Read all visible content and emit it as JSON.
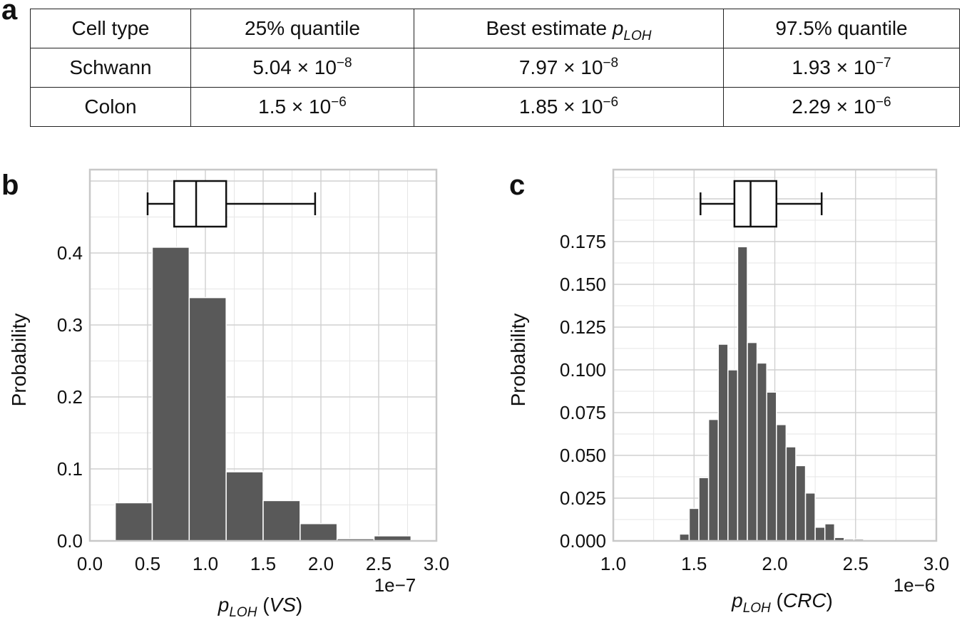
{
  "panel_labels": {
    "a": "a",
    "b": "b",
    "c": "c"
  },
  "table": {
    "header": [
      {
        "text": "Cell type"
      },
      {
        "text": "25% quantile"
      },
      {
        "text": "Best estimate ",
        "italic": "p",
        "sub": "LOH"
      },
      {
        "text": "97.5% quantile"
      }
    ],
    "rows": [
      {
        "label": "Schwann",
        "cells": [
          {
            "mant": "5.04 × 10",
            "exp": "−8"
          },
          {
            "mant": "7.97 × 10",
            "exp": "−8"
          },
          {
            "mant": "1.93 × 10",
            "exp": "−7"
          }
        ]
      },
      {
        "label": "Colon",
        "cells": [
          {
            "mant": "1.5 × 10",
            "exp": "−6"
          },
          {
            "mant": "1.85 × 10",
            "exp": "−6"
          },
          {
            "mant": "2.29 × 10",
            "exp": "−6"
          }
        ]
      }
    ]
  },
  "chart_data": [
    {
      "type": "bar",
      "panel": "b",
      "ylabel": "Probability",
      "xlabel_main": "p",
      "xlabel_sub": "LOH",
      "xlabel_paren": "VS",
      "x_offset_text": "1e−7",
      "xlim": [
        0.0,
        3.0
      ],
      "ylim": [
        0.0,
        0.4
      ],
      "xticks": [
        0.0,
        0.5,
        1.0,
        1.5,
        2.0,
        2.5,
        3.0
      ],
      "xtick_labels": [
        "0.0",
        "0.5",
        "1.0",
        "1.5",
        "2.0",
        "2.5",
        "3.0"
      ],
      "yticks": [
        0.0,
        0.1,
        0.2,
        0.3,
        0.4
      ],
      "ytick_labels": [
        "0.0",
        "0.1",
        "0.2",
        "0.3",
        "0.4"
      ],
      "bins": [
        {
          "x0": 0.22,
          "x1": 0.54,
          "value": 0.053
        },
        {
          "x0": 0.54,
          "x1": 0.86,
          "value": 0.408
        },
        {
          "x0": 0.86,
          "x1": 1.18,
          "value": 0.338
        },
        {
          "x0": 1.18,
          "x1": 1.5,
          "value": 0.096
        },
        {
          "x0": 1.5,
          "x1": 1.82,
          "value": 0.056
        },
        {
          "x0": 1.82,
          "x1": 2.14,
          "value": 0.024
        },
        {
          "x0": 2.14,
          "x1": 2.46,
          "value": 0.003
        },
        {
          "x0": 2.46,
          "x1": 2.78,
          "value": 0.007
        }
      ],
      "boxplot": {
        "whisker_low": 0.5,
        "q1": 0.73,
        "median": 0.92,
        "q3": 1.18,
        "whisker_high": 1.95
      },
      "grid": true,
      "bar_color": "#595959"
    },
    {
      "type": "bar",
      "panel": "c",
      "ylabel": "Probability",
      "xlabel_main": "p",
      "xlabel_sub": "LOH",
      "xlabel_paren": "CRC",
      "x_offset_text": "1e−6",
      "xlim": [
        1.0,
        3.0
      ],
      "ylim": [
        0.0,
        0.175
      ],
      "xticks": [
        1.0,
        1.5,
        2.0,
        2.5,
        3.0
      ],
      "xtick_labels": [
        "1.0",
        "1.5",
        "2.0",
        "2.5",
        "3.0"
      ],
      "yticks": [
        0.0,
        0.025,
        0.05,
        0.075,
        0.1,
        0.125,
        0.15,
        0.175
      ],
      "ytick_labels": [
        "0.000",
        "0.025",
        "0.050",
        "0.075",
        "0.100",
        "0.125",
        "0.150",
        "0.175"
      ],
      "bins": [
        {
          "x0": 1.41,
          "x1": 1.47,
          "value": 0.004
        },
        {
          "x0": 1.47,
          "x1": 1.53,
          "value": 0.019
        },
        {
          "x0": 1.53,
          "x1": 1.59,
          "value": 0.037
        },
        {
          "x0": 1.59,
          "x1": 1.65,
          "value": 0.071
        },
        {
          "x0": 1.65,
          "x1": 1.71,
          "value": 0.115
        },
        {
          "x0": 1.71,
          "x1": 1.77,
          "value": 0.1
        },
        {
          "x0": 1.77,
          "x1": 1.83,
          "value": 0.172
        },
        {
          "x0": 1.83,
          "x1": 1.89,
          "value": 0.116
        },
        {
          "x0": 1.89,
          "x1": 1.95,
          "value": 0.104
        },
        {
          "x0": 1.95,
          "x1": 2.01,
          "value": 0.087
        },
        {
          "x0": 2.01,
          "x1": 2.07,
          "value": 0.068
        },
        {
          "x0": 2.07,
          "x1": 2.13,
          "value": 0.055
        },
        {
          "x0": 2.13,
          "x1": 2.19,
          "value": 0.044
        },
        {
          "x0": 2.19,
          "x1": 2.25,
          "value": 0.028
        },
        {
          "x0": 2.25,
          "x1": 2.31,
          "value": 0.008
        },
        {
          "x0": 2.31,
          "x1": 2.37,
          "value": 0.01
        },
        {
          "x0": 2.37,
          "x1": 2.43,
          "value": 0.002
        },
        {
          "x0": 2.43,
          "x1": 2.49,
          "value": 0.001
        },
        {
          "x0": 2.49,
          "x1": 2.55,
          "value": 0.001
        }
      ],
      "boxplot": {
        "whisker_low": 1.54,
        "q1": 1.75,
        "median": 1.85,
        "q3": 2.01,
        "whisker_high": 2.29
      },
      "grid": true,
      "bar_color": "#595959"
    }
  ]
}
